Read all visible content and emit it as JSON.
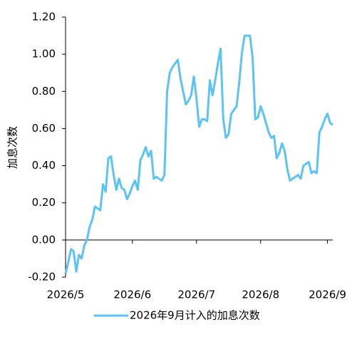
{
  "chart_data": {
    "type": "line",
    "y_label": "加息次数",
    "categories": [
      "2026/5",
      null,
      null,
      null,
      null,
      null,
      null,
      null,
      null,
      null,
      null,
      null,
      null,
      null,
      null,
      null,
      null,
      null,
      null,
      null,
      null,
      null,
      null,
      null,
      null,
      "2026/6",
      null,
      null,
      null,
      null,
      null,
      null,
      null,
      null,
      null,
      null,
      null,
      null,
      null,
      null,
      null,
      null,
      null,
      null,
      null,
      null,
      null,
      null,
      null,
      "2026/7",
      null,
      null,
      null,
      null,
      null,
      null,
      null,
      null,
      null,
      null,
      null,
      null,
      null,
      null,
      null,
      null,
      null,
      null,
      null,
      null,
      null,
      null,
      null,
      "2026/8",
      null,
      null,
      null,
      null,
      null,
      null,
      null,
      null,
      null,
      null,
      null,
      null,
      null,
      null,
      null,
      null,
      null,
      null,
      null,
      null,
      null,
      null,
      null,
      null,
      "2026/9",
      null,
      null
    ],
    "series": [
      {
        "name": "2026年9月计入的加息次数",
        "color": "#5bc3f5",
        "values": [
          -0.18,
          -0.12,
          -0.05,
          -0.06,
          -0.17,
          -0.08,
          -0.1,
          -0.03,
          0.0,
          0.07,
          0.11,
          0.18,
          0.17,
          0.16,
          0.3,
          0.26,
          0.44,
          0.45,
          0.35,
          0.27,
          0.33,
          0.28,
          0.27,
          0.22,
          0.25,
          0.29,
          0.32,
          0.27,
          0.43,
          0.46,
          0.5,
          0.45,
          0.48,
          0.33,
          0.34,
          0.33,
          0.32,
          0.35,
          0.8,
          0.9,
          0.93,
          0.95,
          0.97,
          0.87,
          0.8,
          0.73,
          0.75,
          0.78,
          0.88,
          0.76,
          0.61,
          0.65,
          0.65,
          0.64,
          0.86,
          0.78,
          0.86,
          0.95,
          1.03,
          0.65,
          0.55,
          0.57,
          0.68,
          0.7,
          0.72,
          0.85,
          1.01,
          1.1,
          1.1,
          1.1,
          0.98,
          0.65,
          0.66,
          0.72,
          0.68,
          0.63,
          0.58,
          0.55,
          0.56,
          0.44,
          0.47,
          0.52,
          0.48,
          0.38,
          0.32,
          0.33,
          0.34,
          0.35,
          0.33,
          0.4,
          0.41,
          0.42,
          0.36,
          0.37,
          0.36,
          0.58,
          0.61,
          0.65,
          0.68,
          0.63,
          0.62
        ]
      }
    ],
    "ylim": [
      -0.2,
      1.2
    ],
    "yticks": [
      {
        "value": -0.2,
        "label": "-0.20"
      },
      {
        "value": 0,
        "label": "0.00"
      },
      {
        "value": 0.2,
        "label": "0.20"
      },
      {
        "value": 0.4,
        "label": "0.40"
      },
      {
        "value": 0.6,
        "label": "0.60"
      },
      {
        "value": 0.8,
        "label": "0.80"
      },
      {
        "value": 1,
        "label": "1.00"
      },
      {
        "value": 1.2,
        "label": "1.20"
      }
    ],
    "legend": "bottom"
  }
}
